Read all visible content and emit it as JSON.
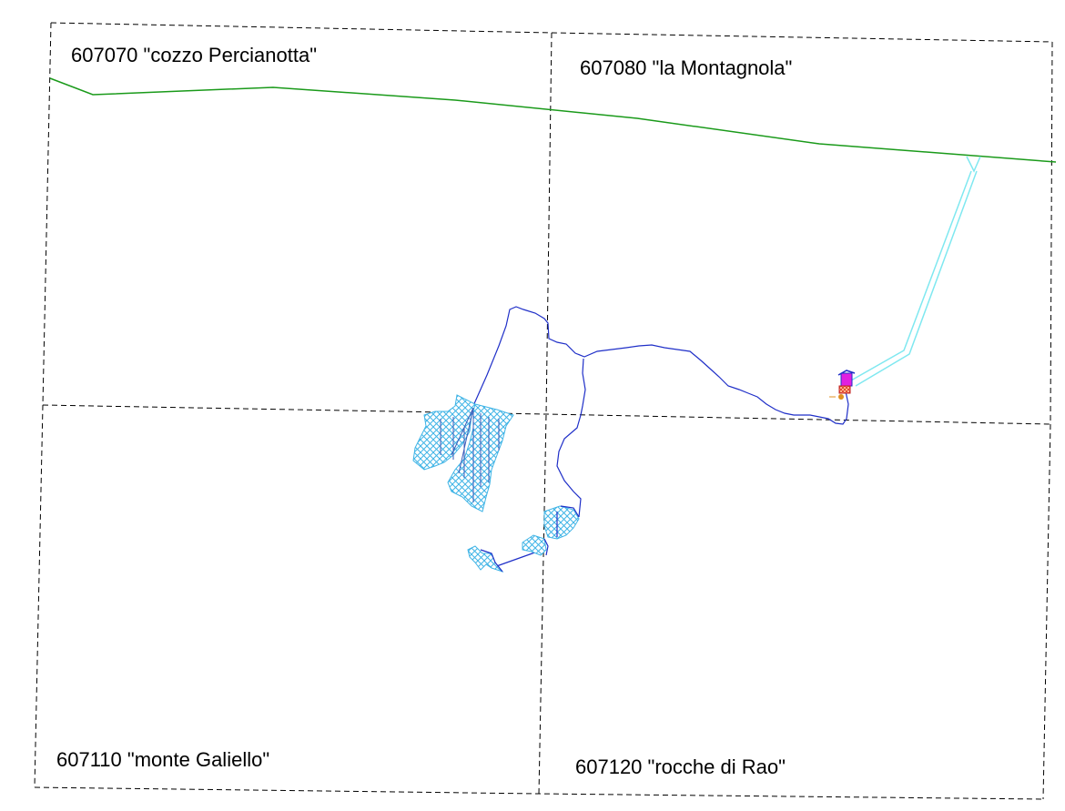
{
  "sheets": [
    {
      "id": "607070",
      "label": "607070 \"cozzo Percianotta\""
    },
    {
      "id": "607080",
      "label": "607080 \"la Montagnola\""
    },
    {
      "id": "607110",
      "label": "607110 \"monte Galiello\""
    },
    {
      "id": "607120",
      "label": "607120 \"rocche di Rao\""
    }
  ],
  "colors": {
    "sheet_grid": "#000000",
    "boundary_line": "#1a9a1a",
    "track": "#1f2fc8",
    "area_fill": "#5cc6ee",
    "light_corridor": "#7fe8f0",
    "site_magenta": "#e020e0",
    "site_red": "#e03020"
  }
}
